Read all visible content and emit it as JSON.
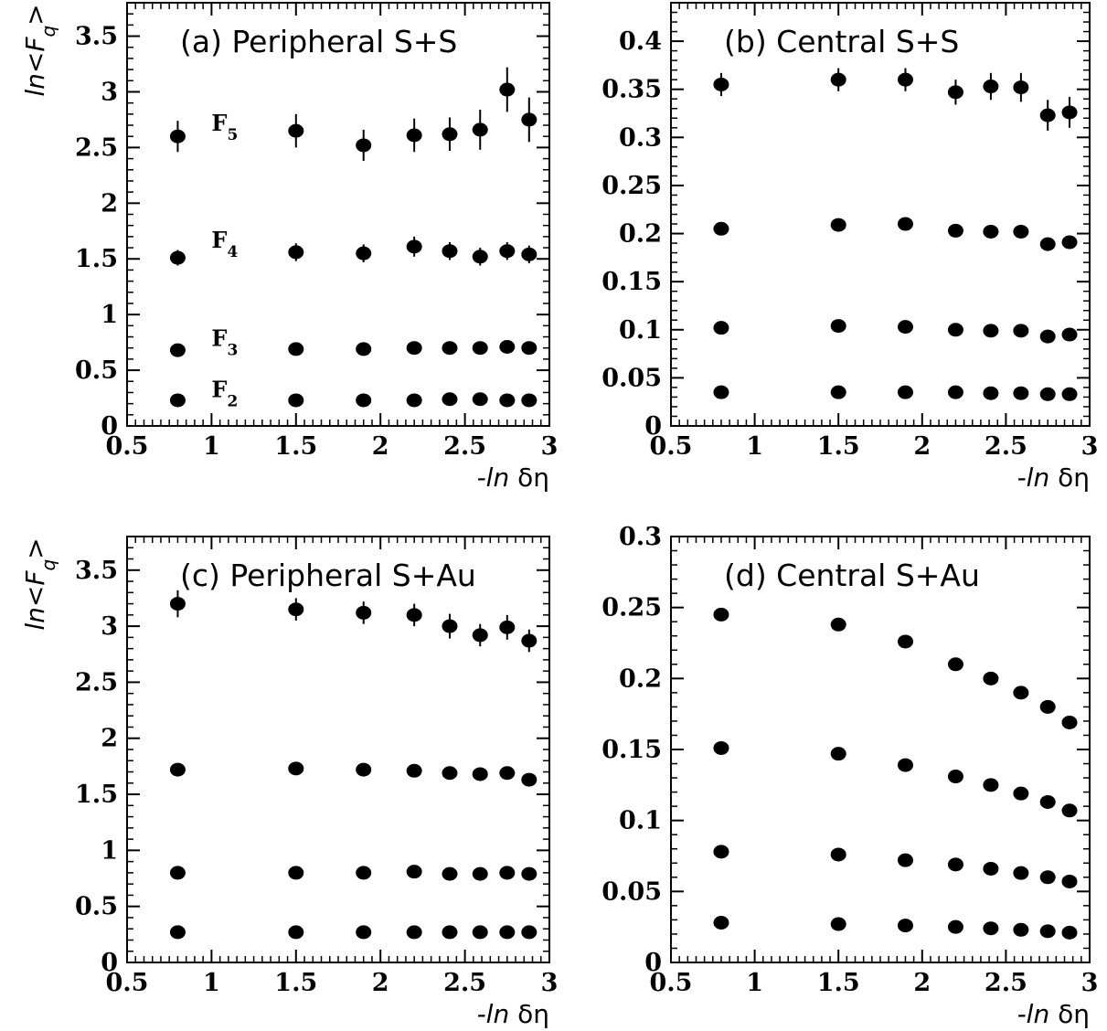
{
  "chart_data": [
    {
      "type": "scatter",
      "title": "(a) Peripheral S+S",
      "xlabel": "-ln δη",
      "ylabel": "ln<F_q>",
      "xlim": [
        0.5,
        3
      ],
      "ylim": [
        0,
        3.8
      ],
      "xticks": [
        "0.5",
        "1",
        "1.5",
        "2",
        "2.5",
        "3"
      ],
      "yticks": [
        "0",
        "0.5",
        "1",
        "1.5",
        "2",
        "2.5",
        "3",
        "3.5"
      ],
      "x": [
        0.8,
        1.5,
        1.9,
        2.2,
        2.41,
        2.59,
        2.75,
        2.88
      ],
      "series": [
        {
          "name": "F2",
          "label_main": "F",
          "label_sub": "2",
          "values": [
            0.23,
            0.23,
            0.23,
            0.23,
            0.24,
            0.24,
            0.23,
            0.23
          ],
          "errors": [
            0.02,
            0.02,
            0.02,
            0.02,
            0.02,
            0.02,
            0.02,
            0.02
          ]
        },
        {
          "name": "F3",
          "label_main": "F",
          "label_sub": "3",
          "values": [
            0.68,
            0.69,
            0.69,
            0.7,
            0.7,
            0.7,
            0.71,
            0.7
          ],
          "errors": [
            0.03,
            0.03,
            0.03,
            0.03,
            0.03,
            0.03,
            0.03,
            0.03
          ]
        },
        {
          "name": "F4",
          "label_main": "F",
          "label_sub": "4",
          "values": [
            1.51,
            1.56,
            1.55,
            1.61,
            1.57,
            1.52,
            1.57,
            1.54
          ],
          "errors": [
            0.07,
            0.08,
            0.08,
            0.09,
            0.08,
            0.08,
            0.08,
            0.08
          ]
        },
        {
          "name": "F5",
          "label_main": "F",
          "label_sub": "5",
          "values": [
            2.6,
            2.65,
            2.52,
            2.61,
            2.62,
            2.66,
            3.02,
            2.75
          ],
          "errors": [
            0.14,
            0.15,
            0.14,
            0.15,
            0.15,
            0.18,
            0.2,
            0.2
          ]
        }
      ]
    },
    {
      "type": "scatter",
      "title": "(b) Central S+S",
      "xlabel": "-ln δη",
      "ylabel": "",
      "xlim": [
        0.5,
        3
      ],
      "ylim": [
        0,
        0.44
      ],
      "xticks": [
        "0.5",
        "1",
        "1.5",
        "2",
        "2.5",
        "3"
      ],
      "yticks": [
        "0",
        "0.05",
        "0.1",
        "0.15",
        "0.2",
        "0.25",
        "0.3",
        "0.35",
        "0.4"
      ],
      "x": [
        0.8,
        1.5,
        1.9,
        2.2,
        2.41,
        2.59,
        2.75,
        2.88
      ],
      "series": [
        {
          "values": [
            0.035,
            0.035,
            0.035,
            0.035,
            0.034,
            0.034,
            0.033,
            0.033
          ],
          "errors": [
            0.002,
            0.002,
            0.002,
            0.002,
            0.002,
            0.002,
            0.002,
            0.002
          ]
        },
        {
          "values": [
            0.102,
            0.104,
            0.103,
            0.1,
            0.099,
            0.099,
            0.093,
            0.095
          ],
          "errors": [
            0.003,
            0.003,
            0.003,
            0.003,
            0.003,
            0.003,
            0.003,
            0.003
          ]
        },
        {
          "values": [
            0.205,
            0.209,
            0.21,
            0.203,
            0.202,
            0.202,
            0.189,
            0.191
          ],
          "errors": [
            0.005,
            0.005,
            0.005,
            0.005,
            0.005,
            0.005,
            0.005,
            0.005
          ]
        },
        {
          "values": [
            0.355,
            0.36,
            0.36,
            0.347,
            0.353,
            0.352,
            0.323,
            0.326
          ],
          "errors": [
            0.012,
            0.012,
            0.012,
            0.013,
            0.014,
            0.015,
            0.016,
            0.016
          ]
        }
      ]
    },
    {
      "type": "scatter",
      "title": "(c) Peripheral S+Au",
      "xlabel": "-ln δη",
      "ylabel": "ln<F_q>",
      "xlim": [
        0.5,
        3
      ],
      "ylim": [
        0,
        3.8
      ],
      "xticks": [
        "0.5",
        "1",
        "1.5",
        "2",
        "2.5",
        "3"
      ],
      "yticks": [
        "0",
        "0.5",
        "1",
        "1.5",
        "2",
        "2.5",
        "3",
        "3.5"
      ],
      "x": [
        0.8,
        1.5,
        1.9,
        2.2,
        2.41,
        2.59,
        2.75,
        2.88
      ],
      "series": [
        {
          "values": [
            0.27,
            0.27,
            0.27,
            0.27,
            0.27,
            0.27,
            0.27,
            0.27
          ],
          "errors": [
            0.02,
            0.02,
            0.02,
            0.02,
            0.02,
            0.02,
            0.02,
            0.02
          ]
        },
        {
          "values": [
            0.8,
            0.8,
            0.8,
            0.81,
            0.79,
            0.79,
            0.8,
            0.79
          ],
          "errors": [
            0.03,
            0.03,
            0.03,
            0.03,
            0.03,
            0.03,
            0.03,
            0.03
          ]
        },
        {
          "values": [
            1.72,
            1.73,
            1.72,
            1.71,
            1.69,
            1.68,
            1.69,
            1.63
          ],
          "errors": [
            0.04,
            0.04,
            0.04,
            0.04,
            0.04,
            0.04,
            0.04,
            0.04
          ]
        },
        {
          "values": [
            3.2,
            3.15,
            3.12,
            3.1,
            3.0,
            2.92,
            2.99,
            2.87
          ],
          "errors": [
            0.12,
            0.1,
            0.1,
            0.1,
            0.11,
            0.1,
            0.11,
            0.1
          ]
        }
      ]
    },
    {
      "type": "scatter",
      "title": "(d) Central S+Au",
      "xlabel": "-ln δη",
      "ylabel": "",
      "xlim": [
        0.5,
        3
      ],
      "ylim": [
        0,
        0.3
      ],
      "xticks": [
        "0.5",
        "1",
        "1.5",
        "2",
        "2.5",
        "3"
      ],
      "yticks": [
        "0",
        "0.05",
        "0.1",
        "0.15",
        "0.2",
        "0.25",
        "0.3"
      ],
      "x": [
        0.8,
        1.5,
        1.9,
        2.2,
        2.41,
        2.59,
        2.75,
        2.88
      ],
      "series": [
        {
          "values": [
            0.028,
            0.027,
            0.026,
            0.025,
            0.024,
            0.023,
            0.022,
            0.021
          ],
          "errors": [
            0.001,
            0.001,
            0.001,
            0.001,
            0.001,
            0.001,
            0.001,
            0.001
          ]
        },
        {
          "values": [
            0.078,
            0.076,
            0.072,
            0.069,
            0.066,
            0.063,
            0.06,
            0.057
          ],
          "errors": [
            0.001,
            0.001,
            0.001,
            0.001,
            0.001,
            0.001,
            0.001,
            0.001
          ]
        },
        {
          "values": [
            0.151,
            0.147,
            0.139,
            0.131,
            0.125,
            0.119,
            0.113,
            0.107
          ],
          "errors": [
            0.001,
            0.001,
            0.001,
            0.001,
            0.001,
            0.001,
            0.001,
            0.001
          ]
        },
        {
          "values": [
            0.245,
            0.238,
            0.226,
            0.21,
            0.2,
            0.19,
            0.18,
            0.169
          ],
          "errors": [
            0.001,
            0.001,
            0.001,
            0.001,
            0.001,
            0.001,
            0.001,
            0.001
          ]
        }
      ]
    }
  ],
  "colors": {
    "marker": "#000000",
    "axis": "#000000",
    "background": "#ffffff"
  }
}
